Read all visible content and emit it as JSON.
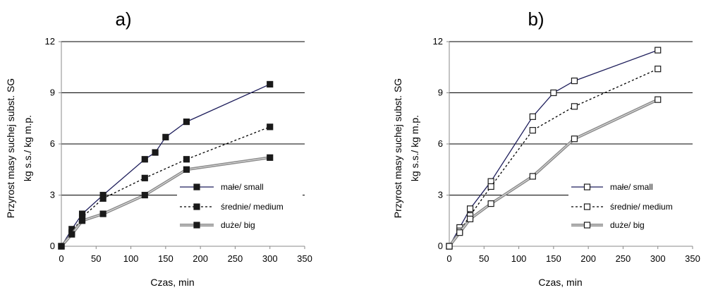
{
  "chart_data": [
    {
      "type": "line",
      "panel_label": "a)",
      "xlabel": "Czas, min",
      "ylabel": [
        "Przyrost masy suchej subst. SG",
        "kg s.s./ kg m.p."
      ],
      "xlim": [
        0,
        350
      ],
      "ylim": [
        0,
        12
      ],
      "x_ticks": [
        0,
        50,
        100,
        150,
        200,
        250,
        300,
        350
      ],
      "y_ticks": [
        0,
        3,
        6,
        9,
        12
      ],
      "grid": "horizontal",
      "legend_position": "center-right",
      "marker": "filled-square",
      "series": [
        {
          "name": "małe/ small",
          "style": "solid",
          "color": "#1f1f5c",
          "x": [
            0,
            15,
            30,
            60,
            120,
            135,
            150,
            180,
            300
          ],
          "y": [
            0,
            1.0,
            1.9,
            3.0,
            5.1,
            5.5,
            6.4,
            7.3,
            9.5
          ]
        },
        {
          "name": "średnie/ medium",
          "style": "dotted",
          "color": "#000000",
          "x": [
            0,
            15,
            30,
            60,
            120,
            180,
            300
          ],
          "y": [
            0,
            0.8,
            1.7,
            2.8,
            4.0,
            5.1,
            7.0
          ]
        },
        {
          "name": "duże/ big",
          "style": "double",
          "color": "#8c8c8c",
          "x": [
            0,
            15,
            30,
            60,
            120,
            180,
            300
          ],
          "y": [
            0,
            0.7,
            1.5,
            1.9,
            3.0,
            4.5,
            5.2
          ]
        }
      ]
    },
    {
      "type": "line",
      "panel_label": "b)",
      "xlabel": "Czas, min",
      "ylabel": [
        "Przyrost masy suchej subst. SG",
        "kg s.s./ kg m.p."
      ],
      "xlim": [
        0,
        350
      ],
      "ylim": [
        0,
        12
      ],
      "x_ticks": [
        0,
        50,
        100,
        150,
        200,
        250,
        300,
        350
      ],
      "y_ticks": [
        0,
        3,
        6,
        9,
        12
      ],
      "grid": "horizontal",
      "legend_position": "center-right",
      "marker": "open-square",
      "series": [
        {
          "name": "małe/ small",
          "style": "solid",
          "color": "#1f1f5c",
          "x": [
            0,
            15,
            30,
            60,
            120,
            150,
            180,
            300
          ],
          "y": [
            0,
            1.1,
            2.2,
            3.8,
            7.6,
            9.0,
            9.7,
            11.5
          ]
        },
        {
          "name": "średnie/ medium",
          "style": "dotted",
          "color": "#000000",
          "x": [
            0,
            15,
            30,
            60,
            120,
            180,
            300
          ],
          "y": [
            0,
            0.9,
            1.8,
            3.5,
            6.8,
            8.2,
            10.4
          ]
        },
        {
          "name": "duże/ big",
          "style": "double",
          "color": "#8c8c8c",
          "x": [
            0,
            15,
            30,
            60,
            120,
            180,
            300
          ],
          "y": [
            0,
            0.8,
            1.6,
            2.5,
            4.1,
            6.3,
            8.6
          ]
        }
      ]
    }
  ]
}
